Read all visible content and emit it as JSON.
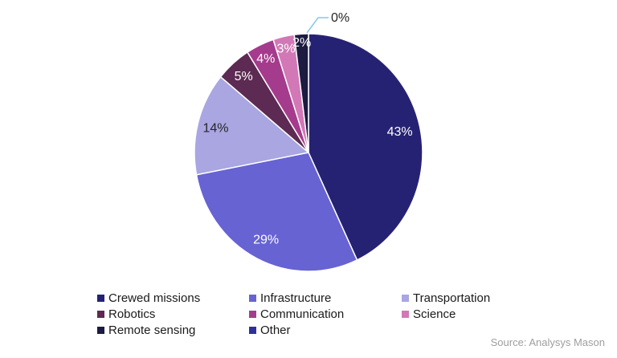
{
  "chart_data": {
    "type": "pie",
    "title": "",
    "unit": "%",
    "direction": "clockwise",
    "start_angle_deg": 0,
    "categories": [
      "Crewed missions",
      "Infrastructure",
      "Transportation",
      "Robotics",
      "Communication",
      "Science",
      "Remote sensing",
      "Other"
    ],
    "values": [
      43,
      29,
      14,
      5,
      4,
      3,
      2,
      0
    ],
    "slices": [
      {
        "label": "Crewed missions",
        "value": 43,
        "color": "#262273",
        "label_color": "#ffffff",
        "label_r": 0.82
      },
      {
        "label": "Infrastructure",
        "value": 29,
        "color": "#6763d3",
        "label_color": "#ffffff",
        "label_r": 0.82
      },
      {
        "label": "Transportation",
        "value": 14,
        "color": "#a9a6e2",
        "label_color": "#262626",
        "label_r": 0.84
      },
      {
        "label": "Robotics",
        "value": 5,
        "color": "#5c2a52",
        "label_color": "#ffffff",
        "label_r": 0.86
      },
      {
        "label": "Communication",
        "value": 4,
        "color": "#a53b8c",
        "label_color": "#ffffff",
        "label_r": 0.88
      },
      {
        "label": "Science",
        "value": 3,
        "color": "#d278b6",
        "label_color": "#ffffff",
        "label_r": 0.9
      },
      {
        "label": "Remote sensing",
        "value": 2,
        "color": "#1d1b40",
        "label_color": "#ffffff",
        "label_r": 0.93
      },
      {
        "label": "Other",
        "value": 0,
        "color": "#30309c",
        "label_color": "#262626",
        "label_r": 1.0
      }
    ],
    "callout": {
      "target": "Other",
      "text": "0%",
      "line_color": "#87c6ec"
    },
    "legend": {
      "position": "bottom",
      "columns": 3,
      "text_color": "#1a1a1a"
    },
    "slice_separator_color": "#ffffff"
  },
  "source": {
    "text": "Source: Analysys Mason"
  }
}
